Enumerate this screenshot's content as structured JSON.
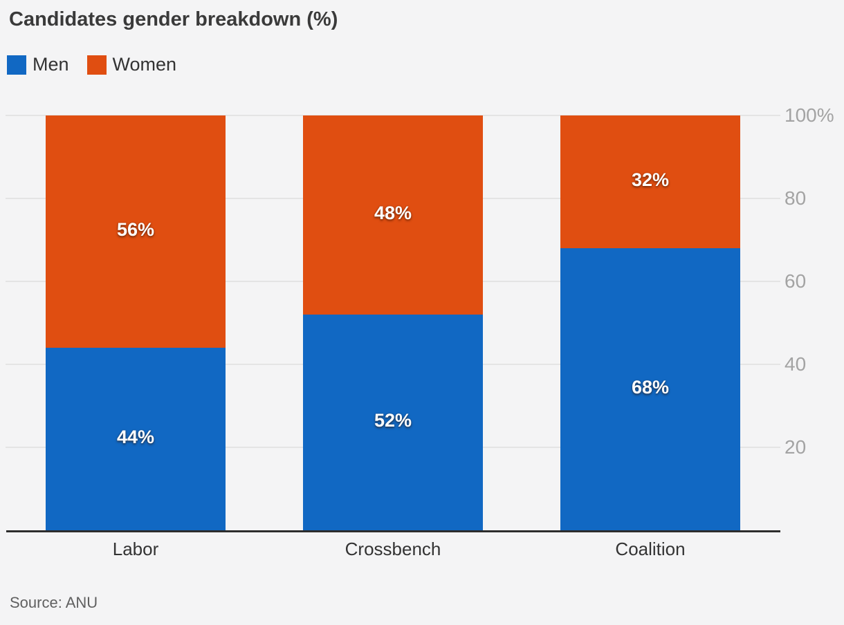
{
  "title": "Candidates gender breakdown (%)",
  "source": "Source: ANU",
  "colors": {
    "background": "#f4f4f5",
    "men": "#1168c3",
    "women": "#e04e11",
    "gridline": "#e4e4e4",
    "axis": "#2d2d2d",
    "tick_text": "#a3a3a3",
    "category_text": "#333333",
    "title_text": "#3a3a3a",
    "source_text": "#606060",
    "bar_label_text": "#ffffff"
  },
  "legend": {
    "position": "top-left",
    "items": [
      {
        "label": "Men",
        "color": "#1168c3"
      },
      {
        "label": "Women",
        "color": "#e04e11"
      }
    ]
  },
  "chart_data": {
    "type": "bar",
    "stacked": true,
    "title": "Candidates gender breakdown (%)",
    "xlabel": "",
    "ylabel": "",
    "categories": [
      "Labor",
      "Crossbench",
      "Coalition"
    ],
    "series": [
      {
        "name": "Men",
        "color": "#1168c3",
        "values": [
          44,
          52,
          68
        ],
        "labels": [
          "44%",
          "52%",
          "68%"
        ]
      },
      {
        "name": "Women",
        "color": "#e04e11",
        "values": [
          56,
          48,
          32
        ],
        "labels": [
          "56%",
          "48%",
          "32%"
        ]
      }
    ],
    "ylim": [
      0,
      100
    ],
    "yticks": [
      {
        "value": 100,
        "label": "100%"
      },
      {
        "value": 80,
        "label": "80"
      },
      {
        "value": 60,
        "label": "60"
      },
      {
        "value": 40,
        "label": "40"
      },
      {
        "value": 20,
        "label": "20"
      }
    ],
    "grid": true,
    "legend_position": "top-left",
    "source": "Source: ANU"
  }
}
